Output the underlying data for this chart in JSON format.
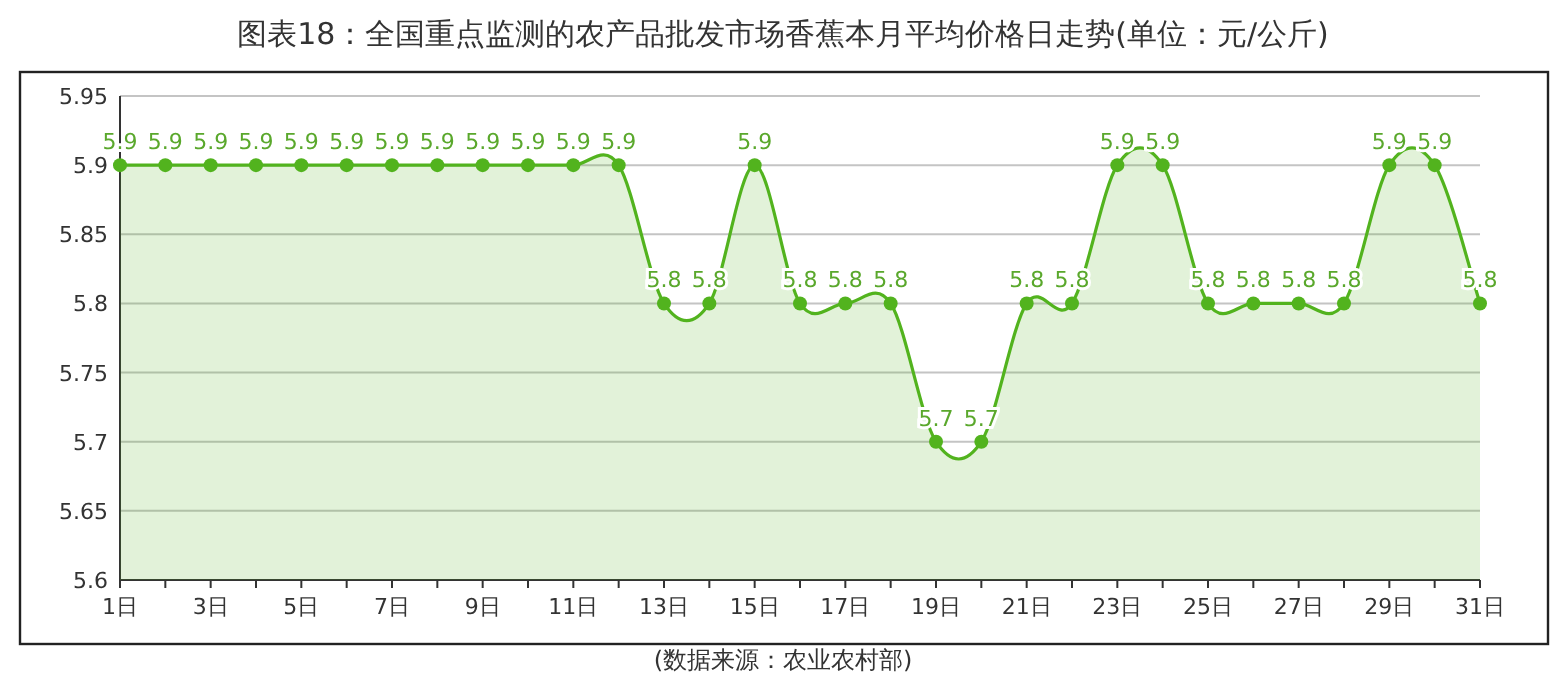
{
  "chart_data": {
    "type": "area",
    "title": "图表18：全国重点监测的农产品批发市场香蕉本月平均价格日走势(单位：元/公斤)",
    "categories": [
      "1日",
      null,
      "3日",
      null,
      "5日",
      null,
      "7日",
      null,
      "9日",
      null,
      "11日",
      null,
      "13日",
      null,
      "15日",
      null,
      "17日",
      null,
      "19日",
      null,
      "21日",
      null,
      "23日",
      null,
      "25日",
      null,
      "27日",
      null,
      "29日",
      null,
      "31日"
    ],
    "values": [
      5.9,
      5.9,
      5.9,
      5.9,
      5.9,
      5.9,
      5.9,
      5.9,
      5.9,
      5.9,
      5.9,
      5.9,
      5.8,
      5.8,
      5.9,
      5.8,
      5.8,
      5.8,
      5.7,
      5.7,
      5.8,
      5.8,
      5.9,
      5.9,
      5.8,
      5.8,
      5.8,
      5.8,
      5.9,
      5.9,
      5.8
    ],
    "color": "#52b31e",
    "ylim": [
      5.6,
      5.95
    ],
    "yticks": [
      5.6,
      5.65,
      5.7,
      5.75,
      5.8,
      5.85,
      5.9,
      5.95
    ],
    "grid": "y",
    "marker": "circle",
    "line_style": "solid",
    "data_labels": true,
    "annotations": [
      "(数据来源：农业农村部)"
    ]
  }
}
